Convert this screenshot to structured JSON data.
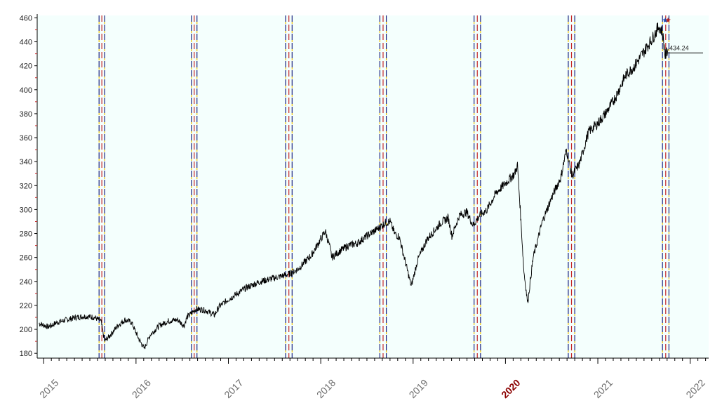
{
  "chart_data": {
    "type": "line",
    "title": "",
    "xlabel": "",
    "ylabel": "",
    "ylim": [
      176,
      462
    ],
    "xlim": [
      2014.93,
      2022.2
    ],
    "y_ticks": [
      180,
      200,
      220,
      240,
      260,
      280,
      300,
      320,
      340,
      360,
      380,
      400,
      420,
      440,
      460
    ],
    "x_ticks": [
      {
        "label": "2015",
        "year": 2015,
        "highlight": false
      },
      {
        "label": "2016",
        "year": 2016,
        "highlight": false
      },
      {
        "label": "2017",
        "year": 2017,
        "highlight": false
      },
      {
        "label": "2018",
        "year": 2018,
        "highlight": false
      },
      {
        "label": "2019",
        "year": 2019,
        "highlight": false
      },
      {
        "label": "2020",
        "year": 2020,
        "highlight": true
      },
      {
        "label": "2021",
        "year": 2021,
        "highlight": false
      },
      {
        "label": "2022",
        "year": 2022,
        "highlight": false
      }
    ],
    "grid": false,
    "background_color": "#f4fffd",
    "series": [
      {
        "color": "#000000",
        "points": [
          [
            2014.95,
            205
          ],
          [
            2015.05,
            202
          ],
          [
            2015.15,
            206
          ],
          [
            2015.25,
            208
          ],
          [
            2015.35,
            210
          ],
          [
            2015.45,
            211
          ],
          [
            2015.55,
            210
          ],
          [
            2015.62,
            207
          ],
          [
            2015.66,
            190
          ],
          [
            2015.72,
            195
          ],
          [
            2015.8,
            203
          ],
          [
            2015.88,
            208
          ],
          [
            2015.95,
            206
          ],
          [
            2016.03,
            192
          ],
          [
            2016.09,
            184
          ],
          [
            2016.15,
            195
          ],
          [
            2016.25,
            203
          ],
          [
            2016.35,
            207
          ],
          [
            2016.45,
            208
          ],
          [
            2016.52,
            203
          ],
          [
            2016.55,
            210
          ],
          [
            2016.65,
            217
          ],
          [
            2016.75,
            216
          ],
          [
            2016.85,
            212
          ],
          [
            2016.9,
            219
          ],
          [
            2017.0,
            225
          ],
          [
            2017.1,
            230
          ],
          [
            2017.2,
            235
          ],
          [
            2017.35,
            240
          ],
          [
            2017.5,
            243
          ],
          [
            2017.65,
            246
          ],
          [
            2017.75,
            250
          ],
          [
            2017.9,
            262
          ],
          [
            2018.05,
            282
          ],
          [
            2018.1,
            268
          ],
          [
            2018.12,
            260
          ],
          [
            2018.2,
            265
          ],
          [
            2018.3,
            270
          ],
          [
            2018.4,
            272
          ],
          [
            2018.5,
            278
          ],
          [
            2018.6,
            283
          ],
          [
            2018.7,
            289
          ],
          [
            2018.75,
            290
          ],
          [
            2018.8,
            280
          ],
          [
            2018.85,
            277
          ],
          [
            2018.92,
            255
          ],
          [
            2018.98,
            236
          ],
          [
            2019.05,
            258
          ],
          [
            2019.15,
            275
          ],
          [
            2019.3,
            289
          ],
          [
            2019.38,
            293
          ],
          [
            2019.42,
            278
          ],
          [
            2019.5,
            295
          ],
          [
            2019.58,
            298
          ],
          [
            2019.65,
            287
          ],
          [
            2019.72,
            295
          ],
          [
            2019.8,
            300
          ],
          [
            2019.9,
            314
          ],
          [
            2020.0,
            322
          ],
          [
            2020.1,
            330
          ],
          [
            2020.13,
            337
          ],
          [
            2020.16,
            300
          ],
          [
            2020.2,
            248
          ],
          [
            2020.24,
            222
          ],
          [
            2020.3,
            260
          ],
          [
            2020.4,
            290
          ],
          [
            2020.5,
            310
          ],
          [
            2020.6,
            327
          ],
          [
            2020.66,
            350
          ],
          [
            2020.72,
            328
          ],
          [
            2020.8,
            338
          ],
          [
            2020.9,
            365
          ],
          [
            2021.0,
            372
          ],
          [
            2021.1,
            382
          ],
          [
            2021.2,
            395
          ],
          [
            2021.3,
            412
          ],
          [
            2021.4,
            420
          ],
          [
            2021.5,
            432
          ],
          [
            2021.6,
            444
          ],
          [
            2021.66,
            453
          ],
          [
            2021.7,
            448
          ],
          [
            2021.73,
            428
          ],
          [
            2021.76,
            434
          ]
        ]
      }
    ],
    "vertical_markers": [
      {
        "x": 2015.6,
        "style": "blue-dash"
      },
      {
        "x": 2015.63,
        "style": "red-dash"
      },
      {
        "x": 2015.66,
        "style": "blue-dash"
      },
      {
        "x": 2016.6,
        "style": "blue-dash"
      },
      {
        "x": 2016.63,
        "style": "red-dash"
      },
      {
        "x": 2016.66,
        "style": "blue-dash"
      },
      {
        "x": 2017.62,
        "style": "blue-dash"
      },
      {
        "x": 2017.655,
        "style": "red-dash"
      },
      {
        "x": 2017.69,
        "style": "blue-dash"
      },
      {
        "x": 2018.64,
        "style": "blue-dash"
      },
      {
        "x": 2018.675,
        "style": "red-dash"
      },
      {
        "x": 2018.71,
        "style": "blue-dash"
      },
      {
        "x": 2019.66,
        "style": "blue-dash"
      },
      {
        "x": 2019.695,
        "style": "red-dash"
      },
      {
        "x": 2019.73,
        "style": "blue-dash"
      },
      {
        "x": 2020.68,
        "style": "blue-dash"
      },
      {
        "x": 2020.715,
        "style": "red-dash"
      },
      {
        "x": 2020.75,
        "style": "blue-dash"
      },
      {
        "x": 2021.7,
        "style": "blue-dash"
      },
      {
        "x": 2021.735,
        "style": "red-dash"
      },
      {
        "x": 2021.77,
        "style": "blue-dash"
      }
    ],
    "last_value": {
      "label": "434.24",
      "value": 434.24
    },
    "peak_markers": [
      {
        "x": 2021.73,
        "y": 458,
        "color": "#1f4fb5"
      },
      {
        "x": 2021.76,
        "y": 458,
        "color": "#b22222"
      }
    ]
  }
}
